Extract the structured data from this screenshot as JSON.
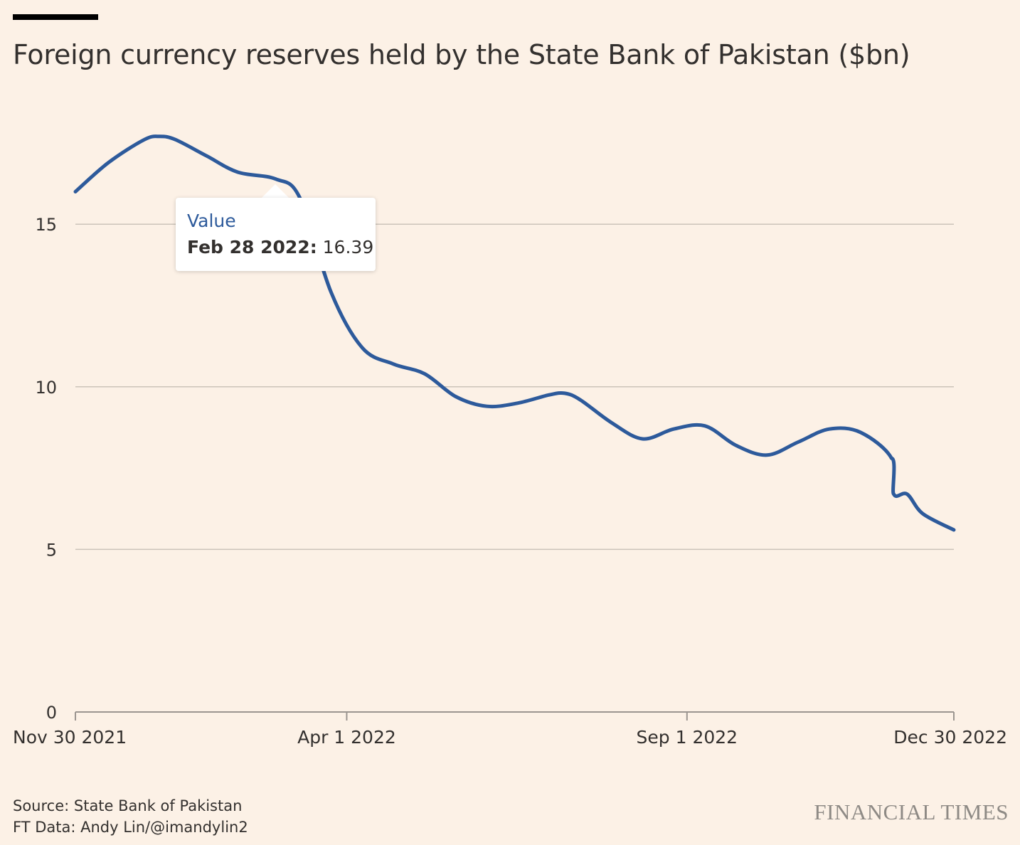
{
  "title": "Foreign currency reserves held by the State Bank of Pakistan ($bn)",
  "tooltip": {
    "series": "Value",
    "date": "Feb 28 2022:",
    "value": "16.39"
  },
  "footer": {
    "source": "Source: State Bank of Pakistan",
    "credit": "FT Data: Andy Lin/@imandylin2",
    "logo": "FINANCIAL TIMES"
  },
  "colors": {
    "background": "#fcf1e6",
    "line": "#2d5a9b",
    "gridline": "#cbc3b9",
    "axis": "#9b9590",
    "text": "#33302e"
  },
  "chart_data": {
    "type": "line",
    "title": "Foreign currency reserves held by the State Bank of Pakistan ($bn)",
    "xlabel": "",
    "ylabel": "",
    "ylim": [
      0,
      20
    ],
    "xlim": [
      "2021-11-30",
      "2022-12-30"
    ],
    "y_ticks": [
      {
        "value": 0,
        "label": "0"
      },
      {
        "value": 5,
        "label": "5"
      },
      {
        "value": 10,
        "label": "10"
      },
      {
        "value": 15,
        "label": "15"
      }
    ],
    "x_ticks": [
      {
        "date": "2021-11-30",
        "label": "Nov 30 2021"
      },
      {
        "date": "2022-04-01",
        "label": "Apr 1 2022"
      },
      {
        "date": "2022-09-01",
        "label": "Sep 1 2022"
      },
      {
        "date": "2022-12-30",
        "label": "Dec 30 2022"
      }
    ],
    "grid": true,
    "series": [
      {
        "color": "#2d5a9b",
        "points": [
          {
            "x": "2021-11-30",
            "y": 16.0
          },
          {
            "x": "2021-12-15",
            "y": 16.9
          },
          {
            "x": "2021-12-31",
            "y": 17.6
          },
          {
            "x": "2022-01-07",
            "y": 17.7
          },
          {
            "x": "2022-01-14",
            "y": 17.6
          },
          {
            "x": "2022-01-28",
            "y": 17.1
          },
          {
            "x": "2022-02-11",
            "y": 16.6
          },
          {
            "x": "2022-02-28",
            "y": 16.39
          },
          {
            "x": "2022-03-11",
            "y": 15.8
          },
          {
            "x": "2022-03-25",
            "y": 12.9
          },
          {
            "x": "2022-04-08",
            "y": 11.2
          },
          {
            "x": "2022-04-22",
            "y": 10.7
          },
          {
            "x": "2022-05-06",
            "y": 10.4
          },
          {
            "x": "2022-05-20",
            "y": 9.7
          },
          {
            "x": "2022-06-03",
            "y": 9.4
          },
          {
            "x": "2022-06-17",
            "y": 9.5
          },
          {
            "x": "2022-07-01",
            "y": 9.75
          },
          {
            "x": "2022-07-08",
            "y": 9.8
          },
          {
            "x": "2022-07-15",
            "y": 9.6
          },
          {
            "x": "2022-07-29",
            "y": 8.9
          },
          {
            "x": "2022-08-12",
            "y": 8.4
          },
          {
            "x": "2022-08-26",
            "y": 8.7
          },
          {
            "x": "2022-09-09",
            "y": 8.8
          },
          {
            "x": "2022-09-23",
            "y": 8.2
          },
          {
            "x": "2022-10-07",
            "y": 7.9
          },
          {
            "x": "2022-10-21",
            "y": 8.3
          },
          {
            "x": "2022-11-04",
            "y": 8.7
          },
          {
            "x": "2022-11-18",
            "y": 8.6
          },
          {
            "x": "2022-12-02",
            "y": 7.8
          },
          {
            "x": "2022-12-03",
            "y": 6.7
          },
          {
            "x": "2022-12-09",
            "y": 6.7
          },
          {
            "x": "2022-12-16",
            "y": 6.1
          },
          {
            "x": "2022-12-30",
            "y": 5.6
          }
        ]
      }
    ],
    "annotations": [
      {
        "type": "tooltip",
        "x": "2022-02-28",
        "y": 16.39
      }
    ]
  }
}
